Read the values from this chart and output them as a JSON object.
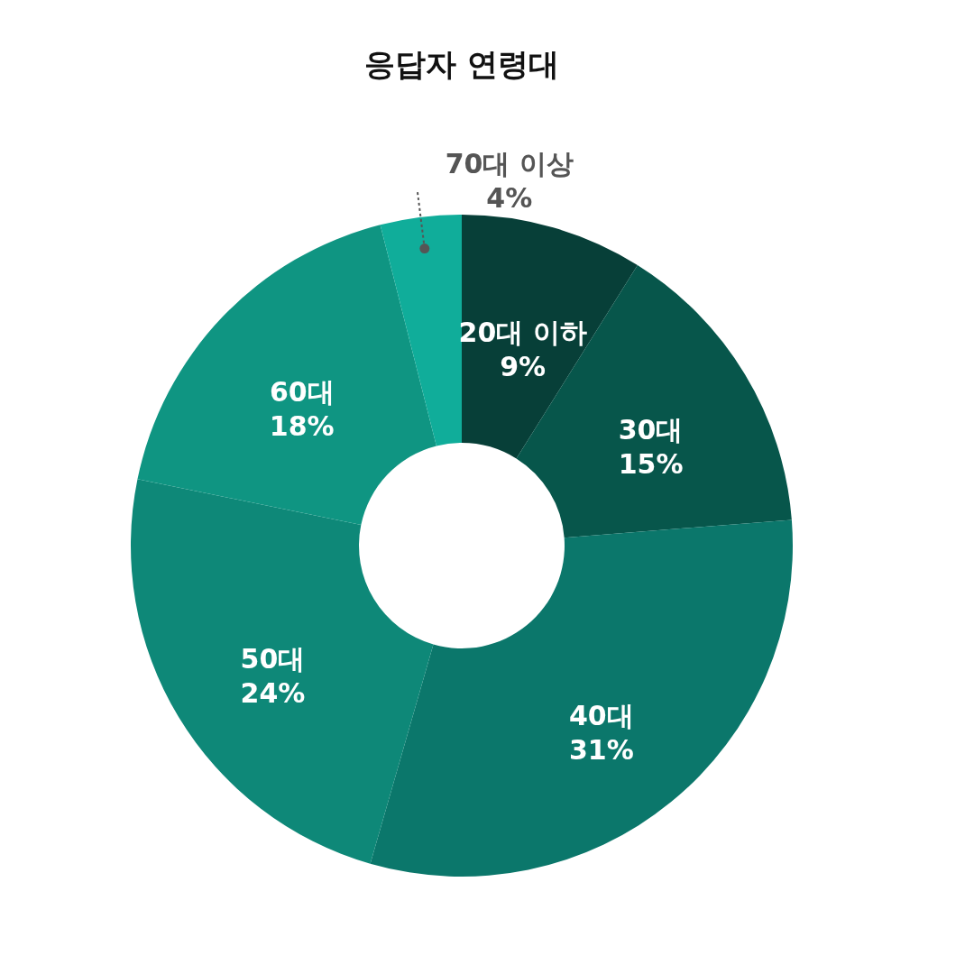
{
  "chart_data": {
    "type": "donut",
    "title": "응답자 연령대",
    "categories": [
      "20대 이하",
      "30대",
      "40대",
      "50대",
      "60대",
      "70대 이상"
    ],
    "values": [
      9,
      15,
      31,
      24,
      18,
      4
    ],
    "value_labels": [
      "9%",
      "15%",
      "31%",
      "24%",
      "18%",
      "4%"
    ],
    "colors": [
      "#073f38",
      "#07564b",
      "#0b776b",
      "#0e8878",
      "#0f9582",
      "#10ad9a"
    ],
    "legend": false
  }
}
